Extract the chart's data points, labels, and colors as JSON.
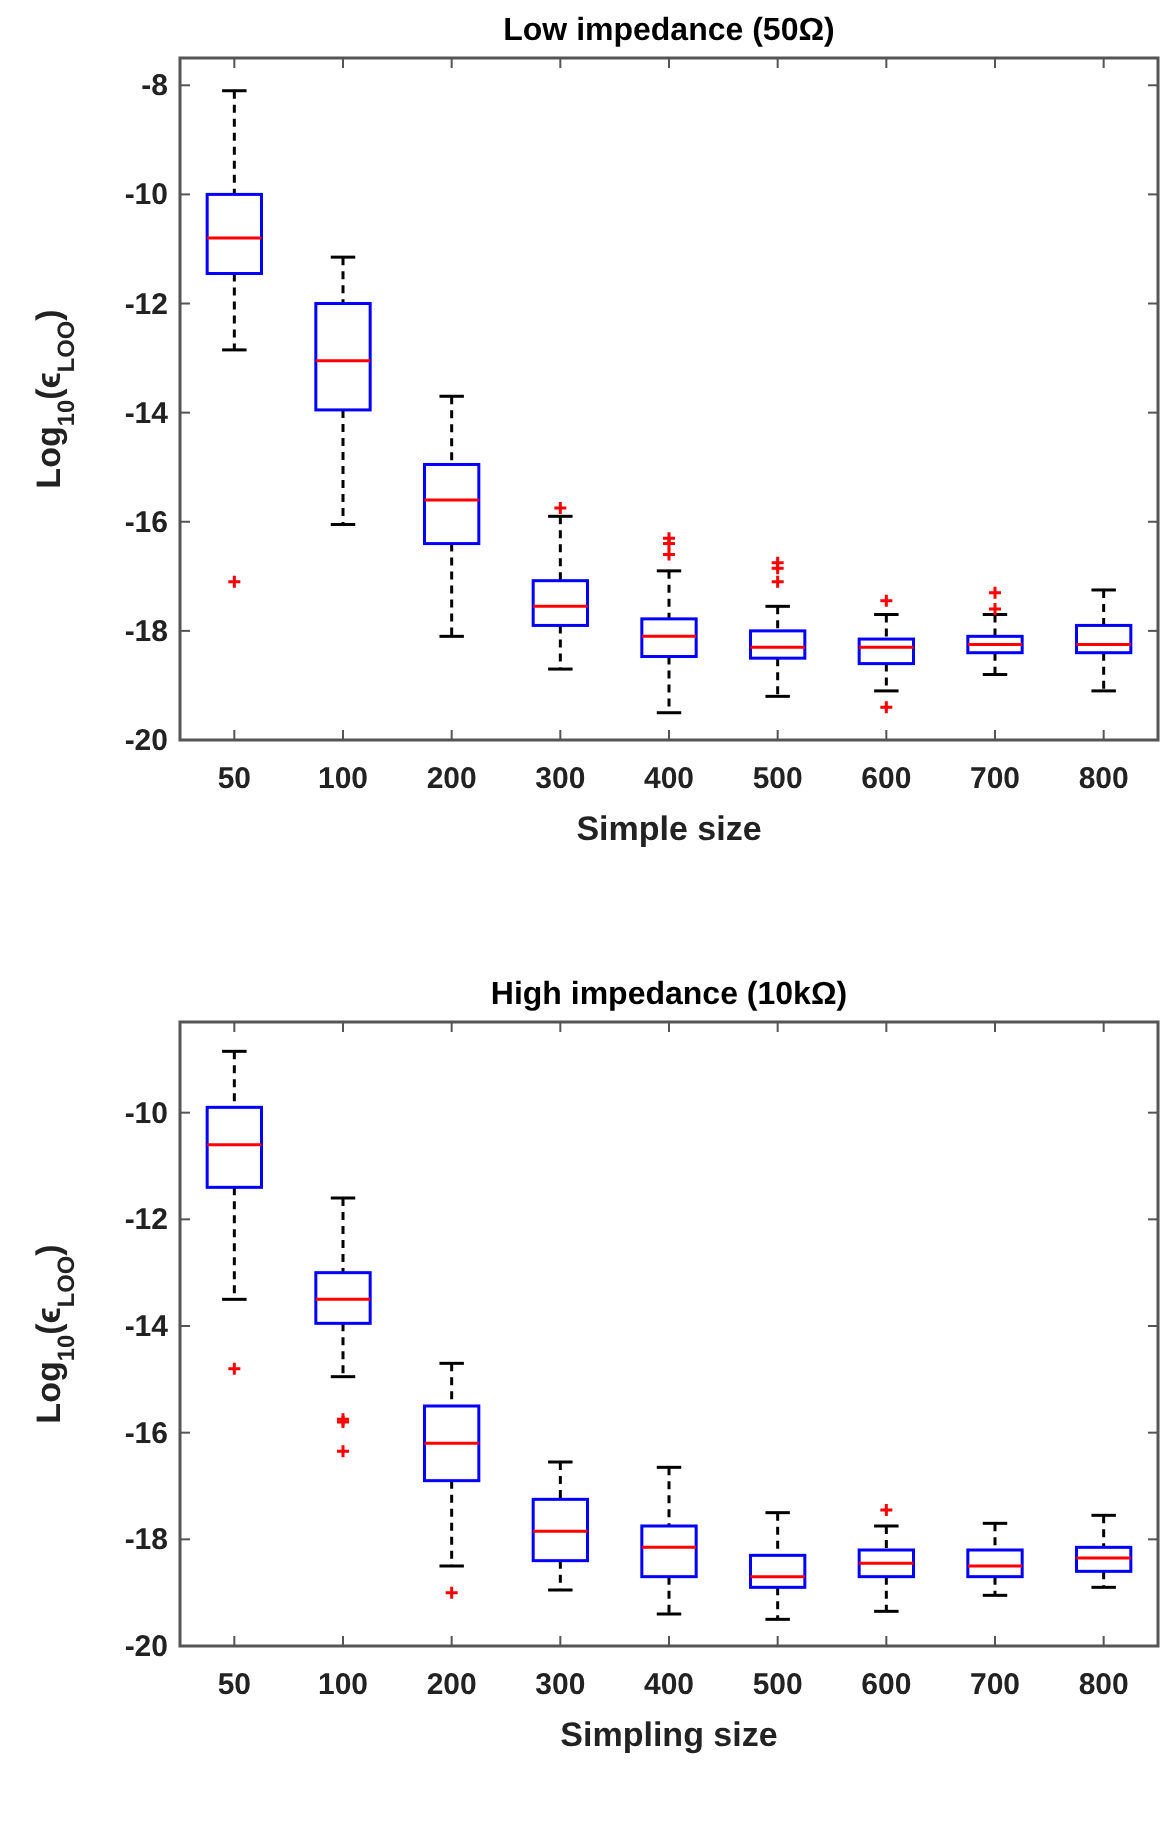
{
  "chart_data": [
    {
      "type": "box",
      "title": "Low impedance (50Ω)",
      "xlabel": "Simple size",
      "ylabel": "Log$_{10}$(ϵ$_{LOO}$)",
      "categories": [
        "50",
        "100",
        "200",
        "300",
        "400",
        "500",
        "600",
        "700",
        "800"
      ],
      "ylim": [
        -20,
        -7.5
      ],
      "yticks": [
        -20,
        -18,
        -16,
        -14,
        -12,
        -10,
        -8
      ],
      "marker": "cross",
      "series": [
        {
          "color": "#0000ff",
          "boxes": [
            {
              "low": -12.85,
              "q1": -11.45,
              "median": -10.8,
              "q3": -10,
              "high": -8.1,
              "outliers": [
                -17.1
              ]
            },
            {
              "low": -16.05,
              "q1": -13.95,
              "median": -13.05,
              "q3": -12,
              "high": -11.15
            },
            {
              "low": -18.1,
              "q1": -16.4,
              "median": -15.6,
              "q3": -14.95,
              "high": -13.7
            },
            {
              "low": -18.7,
              "q1": -17.9,
              "median": -17.55,
              "q3": -17.08,
              "high": -15.9,
              "outliers": [
                -15.75
              ]
            },
            {
              "low": -19.5,
              "q1": -18.47,
              "median": -18.1,
              "q3": -17.78,
              "high": -16.9,
              "outliers": [
                -16.3,
                -16.4,
                -16.6
              ]
            },
            {
              "low": -19.2,
              "q1": -18.5,
              "median": -18.3,
              "q3": -18,
              "high": -17.55,
              "outliers": [
                -16.75,
                -16.85,
                -17.1
              ]
            },
            {
              "low": -19.1,
              "q1": -18.6,
              "median": -18.3,
              "q3": -18.15,
              "high": -17.7,
              "outliers": [
                -17.45,
                -19.4
              ]
            },
            {
              "low": -18.8,
              "q1": -18.4,
              "median": -18.25,
              "q3": -18.1,
              "high": -17.7,
              "outliers": [
                -17.3,
                -17.6
              ]
            },
            {
              "low": -19.1,
              "q1": -18.4,
              "median": -18.25,
              "q3": -17.9,
              "high": -17.25
            }
          ]
        }
      ]
    },
    {
      "type": "box",
      "title": "High impedance (10kΩ)",
      "xlabel": "Simpling size",
      "ylabel": "Log$_{10}$(ϵ$_{LOO}$)",
      "categories": [
        "50",
        "100",
        "200",
        "300",
        "400",
        "500",
        "600",
        "700",
        "800"
      ],
      "ylim": [
        -20,
        -8.3
      ],
      "yticks": [
        -20,
        -18,
        -16,
        -14,
        -12,
        -10
      ],
      "marker": "cross",
      "series": [
        {
          "color": "#0000ff",
          "boxes": [
            {
              "low": -13.5,
              "q1": -11.4,
              "median": -10.6,
              "q3": -9.9,
              "high": -8.85,
              "outliers": [
                -14.8
              ]
            },
            {
              "low": -14.95,
              "q1": -13.95,
              "median": -13.5,
              "q3": -13,
              "high": -11.6,
              "outliers": [
                -15.75,
                -15.8,
                -16.35
              ]
            },
            {
              "low": -18.5,
              "q1": -16.9,
              "median": -16.2,
              "q3": -15.5,
              "high": -14.7,
              "outliers": [
                -19
              ]
            },
            {
              "low": -18.95,
              "q1": -18.4,
              "median": -17.85,
              "q3": -17.25,
              "high": -16.55
            },
            {
              "low": -19.4,
              "q1": -18.7,
              "median": -18.15,
              "q3": -17.75,
              "high": -16.65
            },
            {
              "low": -19.5,
              "q1": -18.9,
              "median": -18.7,
              "q3": -18.3,
              "high": -17.5
            },
            {
              "low": -19.35,
              "q1": -18.7,
              "median": -18.45,
              "q3": -18.2,
              "high": -17.75,
              "outliers": [
                -17.45
              ]
            },
            {
              "low": -19.05,
              "q1": -18.7,
              "median": -18.5,
              "q3": -18.2,
              "high": -17.7
            },
            {
              "low": -18.9,
              "q1": -18.6,
              "median": -18.35,
              "q3": -18.15,
              "high": -17.55
            }
          ]
        }
      ]
    }
  ]
}
